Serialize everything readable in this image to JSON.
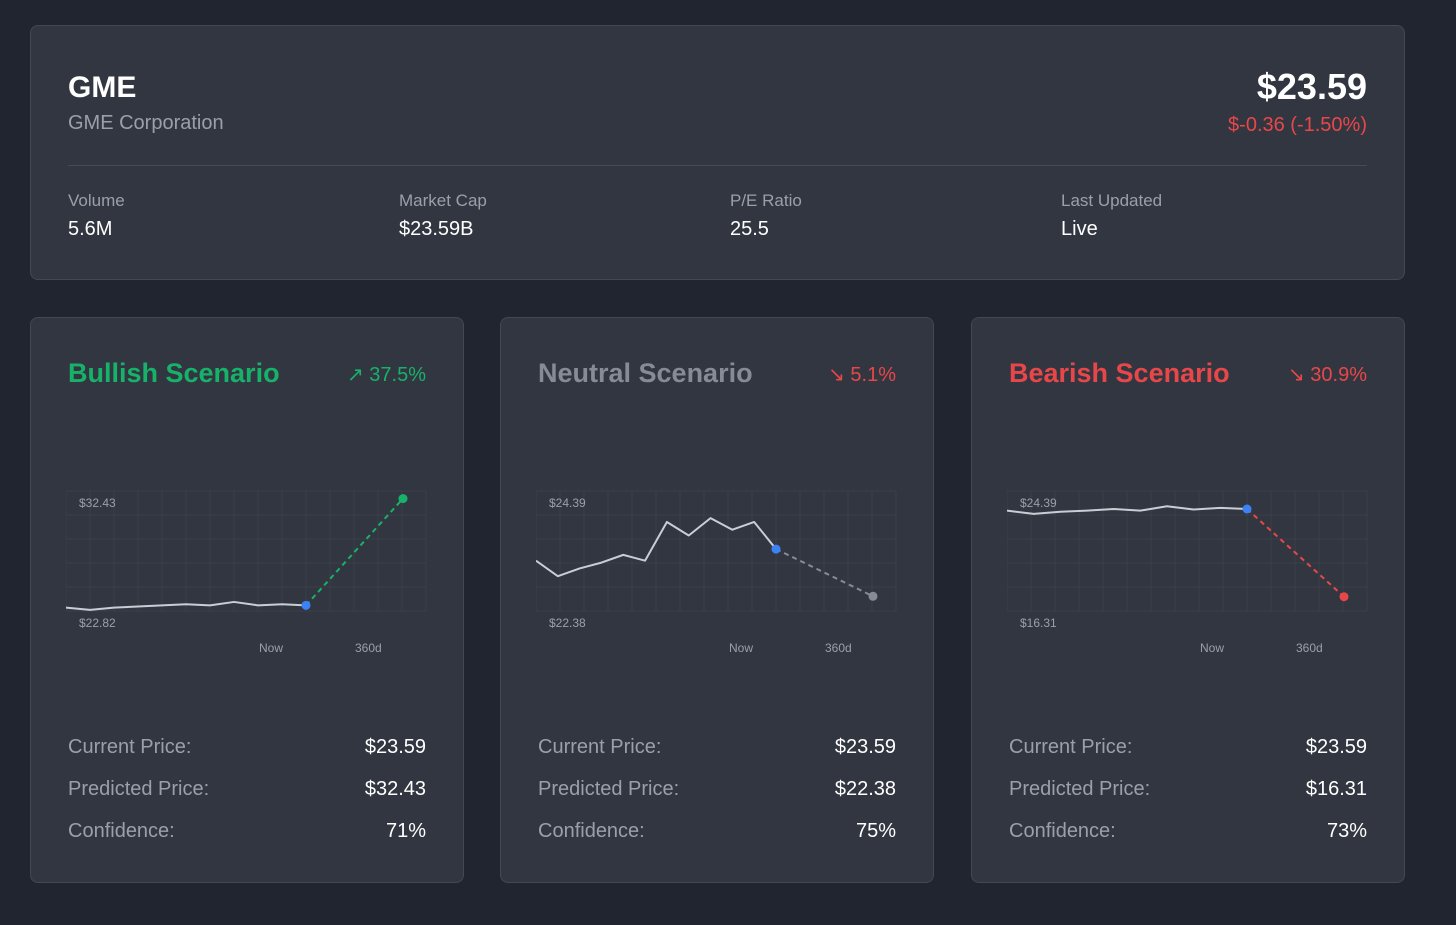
{
  "quote": {
    "ticker": "GME",
    "company": "GME Corporation",
    "price": "$23.59",
    "change": "$-0.36 (-1.50%)",
    "change_color": "#e8474a",
    "stats": [
      {
        "label": "Volume",
        "value": "5.6M"
      },
      {
        "label": "Market Cap",
        "value": "$23.59B"
      },
      {
        "label": "P/E Ratio",
        "value": "25.5"
      },
      {
        "label": "Last Updated",
        "value": "Live"
      }
    ]
  },
  "scenarios": [
    {
      "title": "Bullish Scenario",
      "pct": "↗ 37.5%",
      "color": "#17b26a",
      "current_label": "Current Price:",
      "current_value": "$23.59",
      "predicted_label": "Predicted Price:",
      "predicted_value": "$32.43",
      "confidence_label": "Confidence:",
      "confidence_value": "71%"
    },
    {
      "title": "Neutral Scenario",
      "pct": "↘ 5.1%",
      "color": "#868b96",
      "current_label": "Current Price:",
      "current_value": "$23.59",
      "predicted_label": "Predicted Price:",
      "predicted_value": "$22.38",
      "confidence_label": "Confidence:",
      "confidence_value": "75%"
    },
    {
      "title": "Bearish Scenario",
      "pct": "↘ 30.9%",
      "color": "#e8474a",
      "current_label": "Current Price:",
      "current_value": "$23.59",
      "predicted_label": "Predicted Price:",
      "predicted_value": "$16.31",
      "confidence_label": "Confidence:",
      "confidence_value": "73%"
    }
  ],
  "chart_data": [
    {
      "type": "line",
      "y_max_label": "$32.43",
      "y_min_label": "$22.82",
      "x_labels": [
        "Now",
        "360d"
      ],
      "history": [
        22.8,
        22.6,
        22.8,
        22.9,
        23.0,
        23.1,
        23.0,
        23.3,
        23.0,
        23.1,
        23.0
      ],
      "forecast": [
        23.0,
        32.43
      ],
      "history_color": "#c9cdd4",
      "forecast_color": "#17b26a",
      "now_color": "#3b82f6",
      "ylim": [
        22.5,
        33.1
      ]
    },
    {
      "type": "line",
      "y_max_label": "$24.39",
      "y_min_label": "$22.38",
      "x_labels": [
        "Now",
        "360d"
      ],
      "history": [
        23.3,
        22.9,
        23.1,
        23.25,
        23.45,
        23.3,
        24.3,
        23.95,
        24.4,
        24.1,
        24.3,
        23.6
      ],
      "forecast": [
        23.6,
        22.38
      ],
      "history_color": "#c9cdd4",
      "forecast_color": "#868b96",
      "now_color": "#3b82f6",
      "ylim": [
        22.0,
        25.1
      ]
    },
    {
      "type": "line",
      "y_max_label": "$24.39",
      "y_min_label": "$16.31",
      "x_labels": [
        "Now",
        "360d"
      ],
      "history": [
        24.2,
        23.9,
        24.1,
        24.2,
        24.35,
        24.2,
        24.6,
        24.3,
        24.45,
        24.35
      ],
      "forecast": [
        24.35,
        16.31
      ],
      "history_color": "#c9cdd4",
      "forecast_color": "#e8474a",
      "now_color": "#3b82f6",
      "ylim": [
        15.0,
        26.0
      ]
    }
  ]
}
